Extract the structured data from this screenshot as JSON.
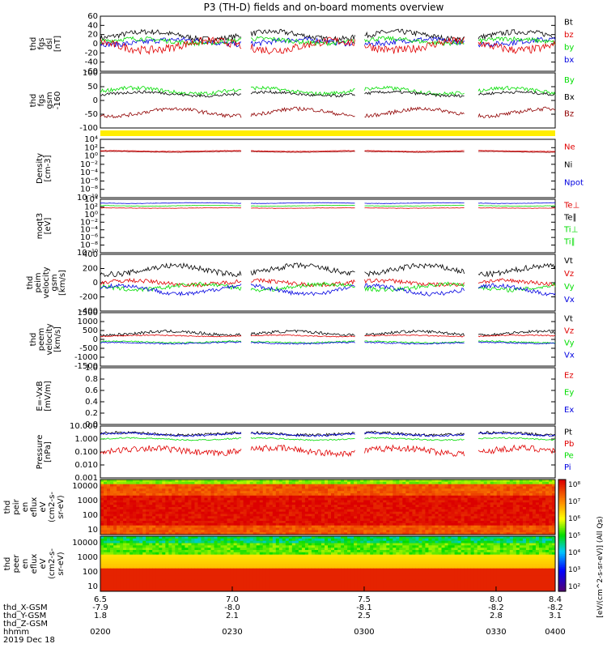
{
  "chart_data": {
    "type": "line",
    "title": "P3 (TH-D) fields and on-board moments overview",
    "colors": {
      "black": "#000000",
      "red": "#e00000",
      "green": "#00dd00",
      "blue": "#0000e0",
      "darkred": "#900000",
      "yellow": "#ffee00"
    },
    "panels": [
      {
        "id": "fgs_dsl",
        "ylabel": [
          "thd",
          "fgs",
          "dsl",
          "[nT]"
        ],
        "yticks": [
          "60",
          "40",
          "20",
          "0",
          "-20",
          "-40",
          "-60"
        ],
        "ylim": [
          -60,
          60
        ],
        "legend": [
          {
            "name": "Bt",
            "color": "black"
          },
          {
            "name": "bz",
            "color": "red"
          },
          {
            "name": "by",
            "color": "green"
          },
          {
            "name": "bx",
            "color": "blue"
          }
        ],
        "series": [
          {
            "name": "Bt",
            "color": "black",
            "base": 18,
            "amp": 8,
            "noise": 6
          },
          {
            "name": "bx",
            "color": "blue",
            "base": 4,
            "amp": 5,
            "noise": 6
          },
          {
            "name": "by",
            "color": "green",
            "base": 6,
            "amp": 5,
            "noise": 5
          },
          {
            "name": "bz",
            "color": "red",
            "base": -4,
            "amp": 10,
            "noise": 9
          }
        ]
      },
      {
        "id": "fgs_gsm",
        "ylabel": [
          "thd",
          "fgs",
          "gsm",
          "-160"
        ],
        "yticks": [
          "100",
          "50",
          "0",
          "-50",
          "-100"
        ],
        "ylim": [
          -130,
          100
        ],
        "legend": [
          {
            "name": "By",
            "color": "green"
          },
          {
            "name": "Bx",
            "color": "black"
          },
          {
            "name": "Bz",
            "color": "darkred"
          }
        ],
        "series": [
          {
            "name": "By",
            "color": "green",
            "base": 25,
            "amp": 12,
            "noise": 8
          },
          {
            "name": "Bx",
            "color": "black",
            "base": 12,
            "amp": 8,
            "noise": 6
          },
          {
            "name": "Bz",
            "color": "darkred",
            "base": -65,
            "amp": 15,
            "noise": 8
          }
        ]
      },
      {
        "id": "density",
        "ylabel": [
          "Density",
          "[cm-3]"
        ],
        "yticks": [
          "10⁴",
          "10²",
          "10⁰",
          "10⁻²",
          "10⁻⁴",
          "10⁻⁶",
          "10⁻⁸",
          "10⁻¹⁰"
        ],
        "ylim": [
          -10,
          4
        ],
        "log": true,
        "legend": [
          {
            "name": "Ne",
            "color": "red"
          },
          {
            "name": "Ni",
            "color": "black"
          },
          {
            "name": "Npot",
            "color": "blue"
          }
        ],
        "series": [
          {
            "name": "Ne",
            "color": "red",
            "base": 1.2,
            "amp": 0.1,
            "noise": 0.05
          },
          {
            "name": "Ni",
            "color": "darkred",
            "base": 1.0,
            "amp": 0.1,
            "noise": 0.05
          }
        ]
      },
      {
        "id": "temperature",
        "ylabel": [
          "moqt3",
          "[eV]"
        ],
        "yticks": [
          "10⁴",
          "10²",
          "10⁰",
          "10⁻²",
          "10⁻⁴",
          "10⁻⁶",
          "10⁻⁸",
          "10⁻¹⁰"
        ],
        "ylim": [
          -10,
          4
        ],
        "log": true,
        "legend": [
          {
            "name": "Te⊥",
            "color": "red"
          },
          {
            "name": "Te∥",
            "color": "black"
          },
          {
            "name": "Ti⊥",
            "color": "green"
          },
          {
            "name": "Ti∥",
            "color": "green"
          }
        ],
        "series": [
          {
            "name": "Ti",
            "color": "blue",
            "base": 3.0,
            "amp": 0.1,
            "noise": 0.05
          },
          {
            "name": "Te",
            "color": "green",
            "base": 2.3,
            "amp": 0.1,
            "noise": 0.05
          },
          {
            "name": "Te2",
            "color": "red",
            "base": 1.7,
            "amp": 0.05,
            "noise": 0.05
          }
        ]
      },
      {
        "id": "peim_vel",
        "ylabel": [
          "thd",
          "peim",
          "velocity",
          "gsm",
          "[km/s]"
        ],
        "yticks": [
          "400",
          "200",
          "0",
          "-200",
          "-400"
        ],
        "ylim": [
          -400,
          400
        ],
        "legend": [
          {
            "name": "Vt",
            "color": "black"
          },
          {
            "name": "Vz",
            "color": "red"
          },
          {
            "name": "Vy",
            "color": "green"
          },
          {
            "name": "Vx",
            "color": "blue"
          }
        ],
        "series": [
          {
            "name": "Vt",
            "color": "black",
            "base": 180,
            "amp": 60,
            "noise": 40
          },
          {
            "name": "Vz",
            "color": "red",
            "base": 0,
            "amp": 30,
            "noise": 30
          },
          {
            "name": "Vy",
            "color": "green",
            "base": -60,
            "amp": 40,
            "noise": 30
          },
          {
            "name": "Vx",
            "color": "blue",
            "base": -100,
            "amp": 60,
            "noise": 30
          }
        ]
      },
      {
        "id": "peem_vel",
        "ylabel": [
          "thd",
          "peem",
          "velocity",
          "[km/s]"
        ],
        "yticks": [
          "1500",
          "1000",
          "500",
          "0",
          "-500",
          "-1000",
          "-1500"
        ],
        "ylim": [
          -1500,
          1500
        ],
        "legend": [
          {
            "name": "Vt",
            "color": "black"
          },
          {
            "name": "Vz",
            "color": "red"
          },
          {
            "name": "Vy",
            "color": "green"
          },
          {
            "name": "Vx",
            "color": "blue"
          }
        ],
        "series": [
          {
            "name": "Vt",
            "color": "black",
            "base": 350,
            "amp": 100,
            "noise": 80
          },
          {
            "name": "Vz",
            "color": "red",
            "base": 200,
            "amp": 40,
            "noise": 30
          },
          {
            "name": "Vy",
            "color": "green",
            "base": -150,
            "amp": 40,
            "noise": 40
          },
          {
            "name": "Vx",
            "color": "blue",
            "base": -200,
            "amp": 40,
            "noise": 40
          }
        ]
      },
      {
        "id": "efield",
        "ylabel": [
          "E=-VxB",
          "[mV/m]"
        ],
        "yticks": [
          "1.0",
          "0.8",
          "0.6",
          "0.4",
          "0.2",
          "0.0"
        ],
        "ylim": [
          0,
          1
        ],
        "legend": [
          {
            "name": "Ez",
            "color": "red"
          },
          {
            "name": "Ey",
            "color": "green"
          },
          {
            "name": "Ex",
            "color": "blue"
          }
        ],
        "series": []
      },
      {
        "id": "pressure",
        "ylabel": [
          "Pressure",
          "[nPa]"
        ],
        "yticks": [
          "10.000",
          "1.000",
          "0.100",
          "0.010",
          "0.001"
        ],
        "ylim": [
          -3,
          1
        ],
        "log": true,
        "legend": [
          {
            "name": "Pt",
            "color": "black"
          },
          {
            "name": "Pb",
            "color": "red"
          },
          {
            "name": "Pe",
            "color": "green"
          },
          {
            "name": "Pi",
            "color": "blue"
          }
        ],
        "series": [
          {
            "name": "Pt",
            "color": "black",
            "base": 0.4,
            "amp": 0.1,
            "noise": 0.1
          },
          {
            "name": "Pi",
            "color": "blue",
            "base": 0.35,
            "amp": 0.1,
            "noise": 0.08
          },
          {
            "name": "Pe",
            "color": "green",
            "base": 0.0,
            "amp": 0.08,
            "noise": 0.05
          },
          {
            "name": "Pb",
            "color": "red",
            "base": -0.9,
            "amp": 0.2,
            "noise": 0.25
          }
        ]
      }
    ],
    "spectra": [
      {
        "id": "peir_en",
        "ylabel": [
          "thd",
          "peir",
          "en",
          "eflux",
          "eV",
          "(cm2-s-",
          "sr-eV)"
        ],
        "yticks": [
          "10000",
          "1000",
          "100",
          "10"
        ]
      },
      {
        "id": "peer_en",
        "ylabel": [
          "thd",
          "peer",
          "en",
          "eflux",
          "eV",
          "(cm2-s-",
          "sr-eV)"
        ],
        "yticks": [
          "10000",
          "1000",
          "100",
          "10"
        ]
      }
    ],
    "colorbar": {
      "label": "[eV/(cm^2-s-sr-eV)] (All Qs)",
      "ticks": [
        "10⁸",
        "10⁷",
        "10⁶",
        "10⁵",
        "10⁴",
        "10³",
        "10²"
      ]
    },
    "xaxis": {
      "rows": [
        {
          "label": "thd_X-GSM",
          "values": [
            "-7.9",
            "-8.0",
            "-8.1",
            "-8.2",
            "-8.2"
          ]
        },
        {
          "label": "thd_Y-GSM",
          "values": [
            "1.8",
            "2.1",
            "2.5",
            "2.8",
            "3.1"
          ]
        },
        {
          "label": "thd_Z-GSM",
          "values": [
            "",
            "",
            "",
            "",
            ""
          ]
        },
        {
          "label": "hhmm",
          "values": [
            "0200",
            "0230",
            "0300",
            "0330",
            "0400"
          ]
        }
      ],
      "top_row": [
        "6.5",
        "7.0",
        "7.5",
        "8.0",
        "8.4"
      ],
      "date": "2019 Dec 18"
    }
  }
}
